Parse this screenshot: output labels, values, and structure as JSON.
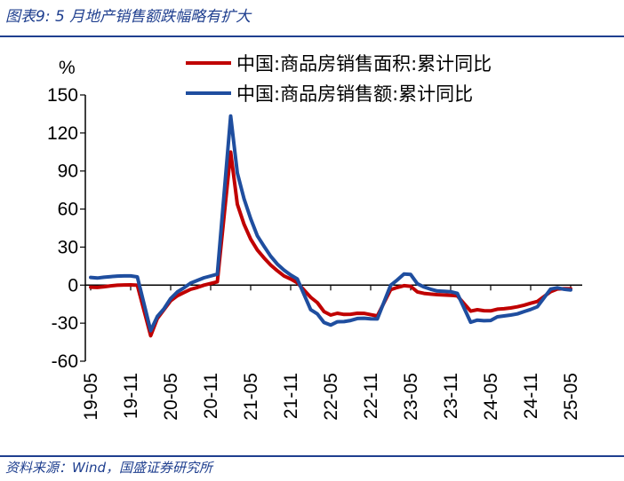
{
  "figure": {
    "title": "图表9:  5 月地产销售额跌幅略有扩大",
    "source": "资料来源：Wind，国盛证券研究所"
  },
  "chart_data": {
    "type": "line",
    "ylabel": "%",
    "ylim": [
      -60,
      150
    ],
    "yticks": [
      150,
      120,
      90,
      60,
      30,
      0,
      -30,
      -60
    ],
    "xticks": [
      "19-05",
      "19-11",
      "20-05",
      "20-11",
      "21-05",
      "21-11",
      "22-05",
      "22-11",
      "23-05",
      "23-11",
      "24-05",
      "24-11",
      "25-05"
    ],
    "x": [
      "19-05",
      "19-06",
      "19-07",
      "19-08",
      "19-09",
      "19-10",
      "19-11",
      "19-12",
      "20-02",
      "20-03",
      "20-04",
      "20-05",
      "20-06",
      "20-07",
      "20-08",
      "20-09",
      "20-10",
      "20-11",
      "20-12",
      "21-02",
      "21-03",
      "21-04",
      "21-05",
      "21-06",
      "21-07",
      "21-08",
      "21-09",
      "21-10",
      "21-11",
      "21-12",
      "22-02",
      "22-03",
      "22-04",
      "22-05",
      "22-06",
      "22-07",
      "22-08",
      "22-09",
      "22-10",
      "22-11",
      "22-12",
      "23-02",
      "23-03",
      "23-04",
      "23-05",
      "23-06",
      "23-07",
      "23-08",
      "23-09",
      "23-10",
      "23-11",
      "23-12",
      "24-02",
      "24-03",
      "24-04",
      "24-05",
      "24-06",
      "24-07",
      "24-08",
      "24-09",
      "24-10",
      "24-11",
      "24-12",
      "25-02",
      "25-03",
      "25-04",
      "25-05"
    ],
    "legend_position": "top",
    "grid": false,
    "series": [
      {
        "name": "中国:商品房销售面积:累计同比",
        "color": "#c00000",
        "values": [
          -1.6,
          -1.8,
          -1.3,
          -0.6,
          -0.1,
          0.1,
          0.2,
          -0.1,
          -39.9,
          -26.3,
          -19.3,
          -12.3,
          -8.4,
          -5.8,
          -3.3,
          -1.8,
          0.0,
          1.3,
          2.6,
          104.9,
          63.8,
          48.1,
          36.3,
          27.7,
          21.5,
          15.9,
          11.3,
          7.3,
          4.8,
          1.9,
          -9.6,
          -13.8,
          -20.9,
          -23.6,
          -22.2,
          -23.1,
          -23.0,
          -22.2,
          -22.3,
          -23.3,
          -24.3,
          -3.6,
          -1.8,
          -0.4,
          -0.9,
          -5.3,
          -6.5,
          -7.1,
          -7.5,
          -7.8,
          -8.0,
          -8.5,
          -20.5,
          -19.4,
          -20.2,
          -20.3,
          -19.0,
          -18.6,
          -18.0,
          -17.1,
          -15.8,
          -14.3,
          -12.9,
          -5.1,
          -3.0,
          -2.8,
          -2.9
        ]
      },
      {
        "name": "中国:商品房销售额:累计同比",
        "color": "#1f4e9f",
        "values": [
          6.1,
          5.6,
          6.2,
          6.7,
          7.1,
          7.3,
          7.3,
          6.5,
          -35.9,
          -24.7,
          -18.6,
          -10.6,
          -5.4,
          -2.1,
          1.6,
          3.7,
          5.8,
          7.2,
          8.7,
          133.4,
          88.5,
          68.2,
          52.4,
          38.9,
          30.7,
          22.8,
          16.6,
          11.8,
          8.0,
          4.8,
          -19.3,
          -22.7,
          -29.5,
          -31.5,
          -28.9,
          -28.8,
          -27.9,
          -26.3,
          -26.1,
          -26.6,
          -26.7,
          -0.1,
          4.1,
          8.8,
          8.4,
          1.1,
          -1.5,
          -3.2,
          -4.6,
          -4.9,
          -5.2,
          -6.5,
          -29.3,
          -27.6,
          -28.1,
          -27.9,
          -25.0,
          -24.3,
          -23.6,
          -22.7,
          -20.9,
          -19.2,
          -17.1,
          -3.1,
          -2.1,
          -3.2,
          -3.8
        ]
      }
    ]
  }
}
